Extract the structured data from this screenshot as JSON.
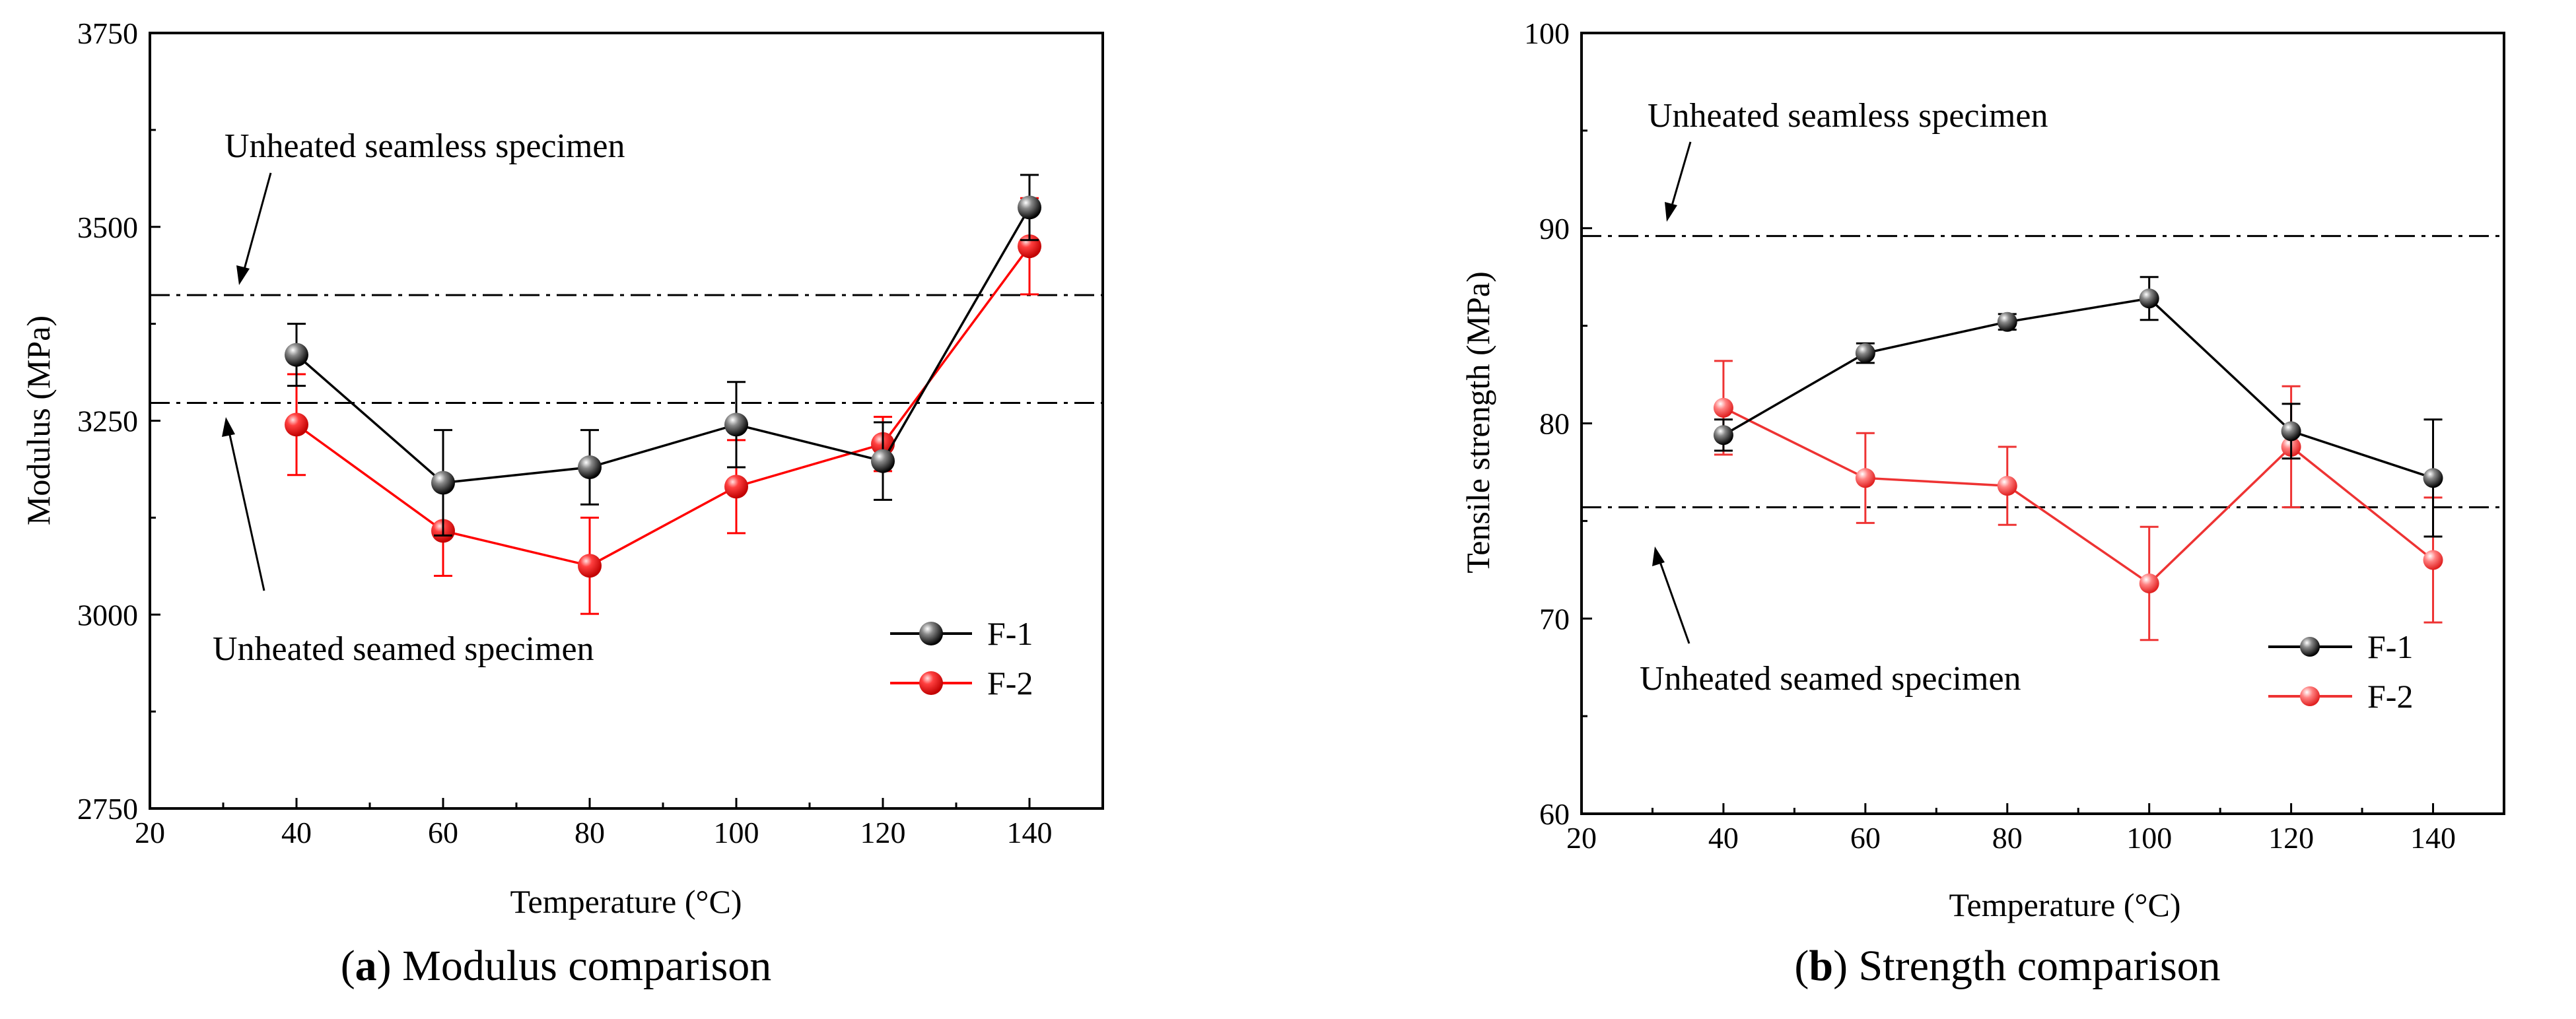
{
  "chart_data": [
    {
      "type": "line",
      "caption_letter": "a",
      "caption_text": " Modulus comparison",
      "xlabel": "Temperature (°C)",
      "ylabel": "Modulus (MPa)",
      "xlim": [
        20,
        150
      ],
      "ylim": [
        2750,
        3750
      ],
      "xticks": [
        20,
        40,
        60,
        80,
        100,
        120,
        140
      ],
      "yticks": [
        2750,
        3000,
        3250,
        3500,
        3750
      ],
      "x": [
        40,
        60,
        80,
        100,
        120,
        140
      ],
      "series": [
        {
          "name": "F-1",
          "values": [
            3335,
            3170,
            3190,
            3245,
            3198,
            3525
          ],
          "errors": [
            40,
            68,
            48,
            55,
            50,
            42
          ],
          "color": "#000000"
        },
        {
          "name": "F-2",
          "values": [
            3245,
            3108,
            3063,
            3165,
            3220,
            3475
          ],
          "errors": [
            65,
            58,
            62,
            60,
            35,
            62
          ],
          "color": "#ff0000"
        }
      ],
      "reference_lines": [
        {
          "label": "Unheated seamless specimen",
          "y": 3412
        },
        {
          "label": "Unheated seamed specimen",
          "y": 3273
        }
      ],
      "legend_position": "lower-right",
      "grid": false
    },
    {
      "type": "line",
      "caption_letter": "b",
      "caption_text": " Strength comparison",
      "xlabel": "Temperature (°C)",
      "ylabel": "Tensile strength (MPa)",
      "xlim": [
        20,
        150
      ],
      "ylim": [
        60,
        100
      ],
      "xticks": [
        20,
        40,
        60,
        80,
        100,
        120,
        140
      ],
      "yticks": [
        60,
        70,
        80,
        90,
        100
      ],
      "x": [
        40,
        60,
        80,
        100,
        120,
        140
      ],
      "series": [
        {
          "name": "F-1",
          "values": [
            79.4,
            83.6,
            85.2,
            86.4,
            79.6,
            77.2
          ],
          "errors": [
            0.8,
            0.5,
            0.4,
            1.1,
            1.4,
            3.0
          ],
          "color": "#000000"
        },
        {
          "name": "F-2",
          "values": [
            80.8,
            77.2,
            76.8,
            71.8,
            78.8,
            73.0
          ],
          "errors": [
            2.4,
            2.3,
            2.0,
            2.9,
            3.1,
            3.2
          ],
          "color": "#ee3333"
        }
      ],
      "reference_lines": [
        {
          "label": "Unheated seamless specimen",
          "y": 89.6
        },
        {
          "label": "Unheated seamed specimen",
          "y": 75.7
        }
      ],
      "legend_position": "lower-right",
      "grid": false
    }
  ]
}
